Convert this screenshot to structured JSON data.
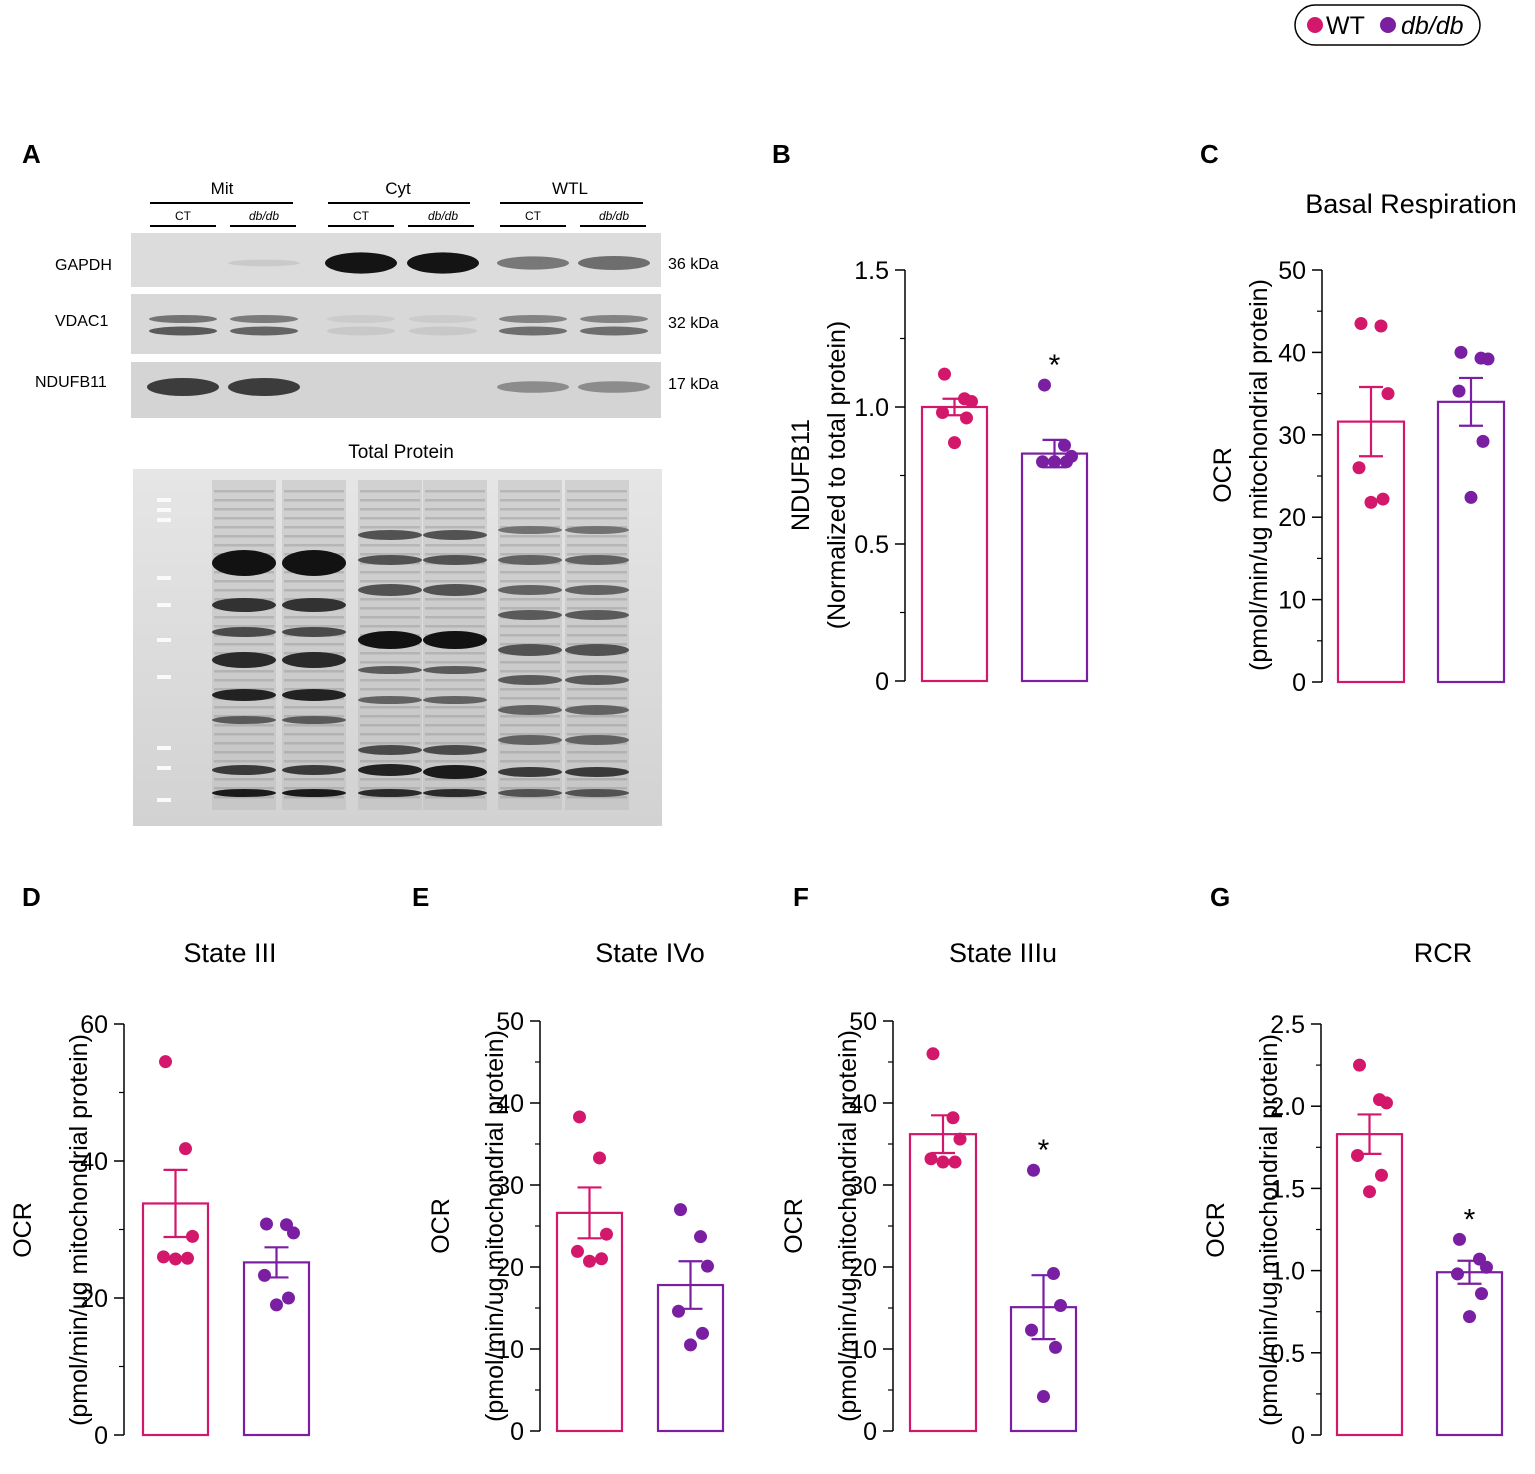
{
  "legend": {
    "items": [
      {
        "label": "WT",
        "color": "#d3176b",
        "italic": false
      },
      {
        "label": "db/db",
        "color": "#7a1fa2",
        "italic": true
      }
    ]
  },
  "colors": {
    "wt": "#d3176b",
    "dbdb": "#7a1fa2"
  },
  "blot": {
    "panel_label": "A",
    "groups": [
      {
        "label": "Mit",
        "lanes": [
          "CT",
          "db/db"
        ]
      },
      {
        "label": "Cyt",
        "lanes": [
          "CT",
          "db/db"
        ]
      },
      {
        "label": "WTL",
        "lanes": [
          "CT",
          "db/db"
        ]
      }
    ],
    "rows": [
      {
        "name": "GAPDH",
        "kda": "36 kDa",
        "intensity": [
          0.0,
          0.04,
          0.95,
          0.95,
          0.45,
          0.5
        ]
      },
      {
        "name": "VDAC1",
        "kda": "32 kDa",
        "intensity": [
          0.6,
          0.55,
          0.05,
          0.05,
          0.5,
          0.5
        ]
      },
      {
        "name": "NDUFB11",
        "kda": "17 kDa",
        "intensity": [
          0.75,
          0.75,
          0.0,
          0.0,
          0.35,
          0.35
        ]
      }
    ],
    "total_protein_title": "Total Protein"
  },
  "chart_data": [
    {
      "panel": "B",
      "type": "bar",
      "title": "",
      "ylabel_lines": [
        "NDUFB11",
        "(Normalized to total protein)"
      ],
      "ylim": [
        0,
        1.5
      ],
      "yticks": [
        0,
        0.5,
        1.0,
        1.5
      ],
      "ytick_labels": [
        "0",
        "0.5",
        "1.0",
        "1.5"
      ],
      "categories": [
        "WT",
        "db/db"
      ],
      "series": [
        {
          "name": "WT",
          "mean": 1.0,
          "sem": 0.03,
          "points": [
            1.12,
            1.03,
            1.02,
            0.98,
            0.96,
            0.87
          ],
          "sig": ""
        },
        {
          "name": "db/db",
          "mean": 0.83,
          "sem": 0.05,
          "points": [
            1.08,
            0.86,
            0.8,
            0.8,
            0.8,
            0.82
          ],
          "sig": "*"
        }
      ]
    },
    {
      "panel": "C",
      "type": "bar",
      "title": "Basal Respiration",
      "ylabel_lines": [
        "OCR",
        "(pmol/min/ug mitochondrial protein)"
      ],
      "ylim": [
        0,
        50
      ],
      "yticks": [
        0,
        10,
        20,
        30,
        40,
        50
      ],
      "ytick_labels": [
        "0",
        "10",
        "20",
        "30",
        "40",
        "50"
      ],
      "categories": [
        "WT",
        "db/db"
      ],
      "series": [
        {
          "name": "WT",
          "mean": 31.6,
          "sem": 4.2,
          "points": [
            43.2,
            43.5,
            35.0,
            26.0,
            21.8,
            22.2
          ],
          "sig": ""
        },
        {
          "name": "db/db",
          "mean": 34.0,
          "sem": 2.9,
          "points": [
            40.0,
            39.2,
            39.3,
            35.3,
            29.2,
            22.4
          ],
          "sig": ""
        }
      ]
    },
    {
      "panel": "D",
      "type": "bar",
      "title": "State III",
      "ylabel_lines": [
        "OCR",
        "(pmol/min/ug mitochondrial protein)"
      ],
      "ylim": [
        0,
        60
      ],
      "yticks": [
        0,
        20,
        40,
        60
      ],
      "ytick_labels": [
        "0",
        "20",
        "40",
        "60"
      ],
      "categories": [
        "WT",
        "db/db"
      ],
      "series": [
        {
          "name": "WT",
          "mean": 33.8,
          "sem": 4.9,
          "points": [
            54.5,
            41.8,
            29.0,
            26.0,
            25.8,
            25.7
          ],
          "sig": ""
        },
        {
          "name": "db/db",
          "mean": 25.2,
          "sem": 2.2,
          "points": [
            30.7,
            30.8,
            29.5,
            23.3,
            20.0,
            19.0
          ],
          "sig": ""
        }
      ]
    },
    {
      "panel": "E",
      "type": "bar",
      "title": "State IVo",
      "ylabel_lines": [
        "OCR",
        "(pmol/min/ug mitochondrial protein)"
      ],
      "ylim": [
        0,
        50
      ],
      "yticks": [
        0,
        10,
        20,
        30,
        40,
        50
      ],
      "ytick_labels": [
        "0",
        "10",
        "20",
        "30",
        "40",
        "50"
      ],
      "categories": [
        "WT",
        "db/db"
      ],
      "series": [
        {
          "name": "WT",
          "mean": 26.6,
          "sem": 3.1,
          "points": [
            38.3,
            33.3,
            24.0,
            21.9,
            21.0,
            20.7
          ],
          "sig": ""
        },
        {
          "name": "db/db",
          "mean": 17.8,
          "sem": 2.9,
          "points": [
            27.0,
            23.7,
            20.1,
            14.6,
            11.9,
            10.5
          ],
          "sig": ""
        }
      ]
    },
    {
      "panel": "F",
      "type": "bar",
      "title": "State IIIu",
      "ylabel_lines": [
        "OCR",
        "(pmol/min/ug mitochondrial protein)"
      ],
      "ylim": [
        0,
        50
      ],
      "yticks": [
        0,
        10,
        20,
        30,
        40,
        50
      ],
      "ytick_labels": [
        "0",
        "10",
        "20",
        "30",
        "40",
        "50"
      ],
      "categories": [
        "WT",
        "db/db"
      ],
      "series": [
        {
          "name": "WT",
          "mean": 36.2,
          "sem": 2.3,
          "points": [
            46.0,
            38.2,
            35.6,
            33.2,
            32.8,
            32.8
          ],
          "sig": ""
        },
        {
          "name": "db/db",
          "mean": 15.1,
          "sem": 3.9,
          "points": [
            31.8,
            19.2,
            15.3,
            12.3,
            10.2,
            4.2
          ],
          "sig": "*"
        }
      ]
    },
    {
      "panel": "G",
      "type": "bar",
      "title": "RCR",
      "ylabel_lines": [
        "OCR",
        "(pmol/min/ug mitochondrial protein)"
      ],
      "ylim": [
        0,
        2.5
      ],
      "yticks": [
        0,
        0.5,
        1.0,
        1.5,
        2.0,
        2.5
      ],
      "ytick_labels": [
        "0",
        "0.5",
        "1.0",
        "1.5",
        "2.0",
        "2.5"
      ],
      "categories": [
        "WT",
        "db/db"
      ],
      "series": [
        {
          "name": "WT",
          "mean": 1.83,
          "sem": 0.12,
          "points": [
            2.25,
            2.04,
            2.02,
            1.7,
            1.58,
            1.48
          ],
          "sig": ""
        },
        {
          "name": "db/db",
          "mean": 0.99,
          "sem": 0.07,
          "points": [
            1.19,
            1.07,
            1.02,
            0.98,
            0.86,
            0.72
          ],
          "sig": "*"
        }
      ]
    }
  ]
}
